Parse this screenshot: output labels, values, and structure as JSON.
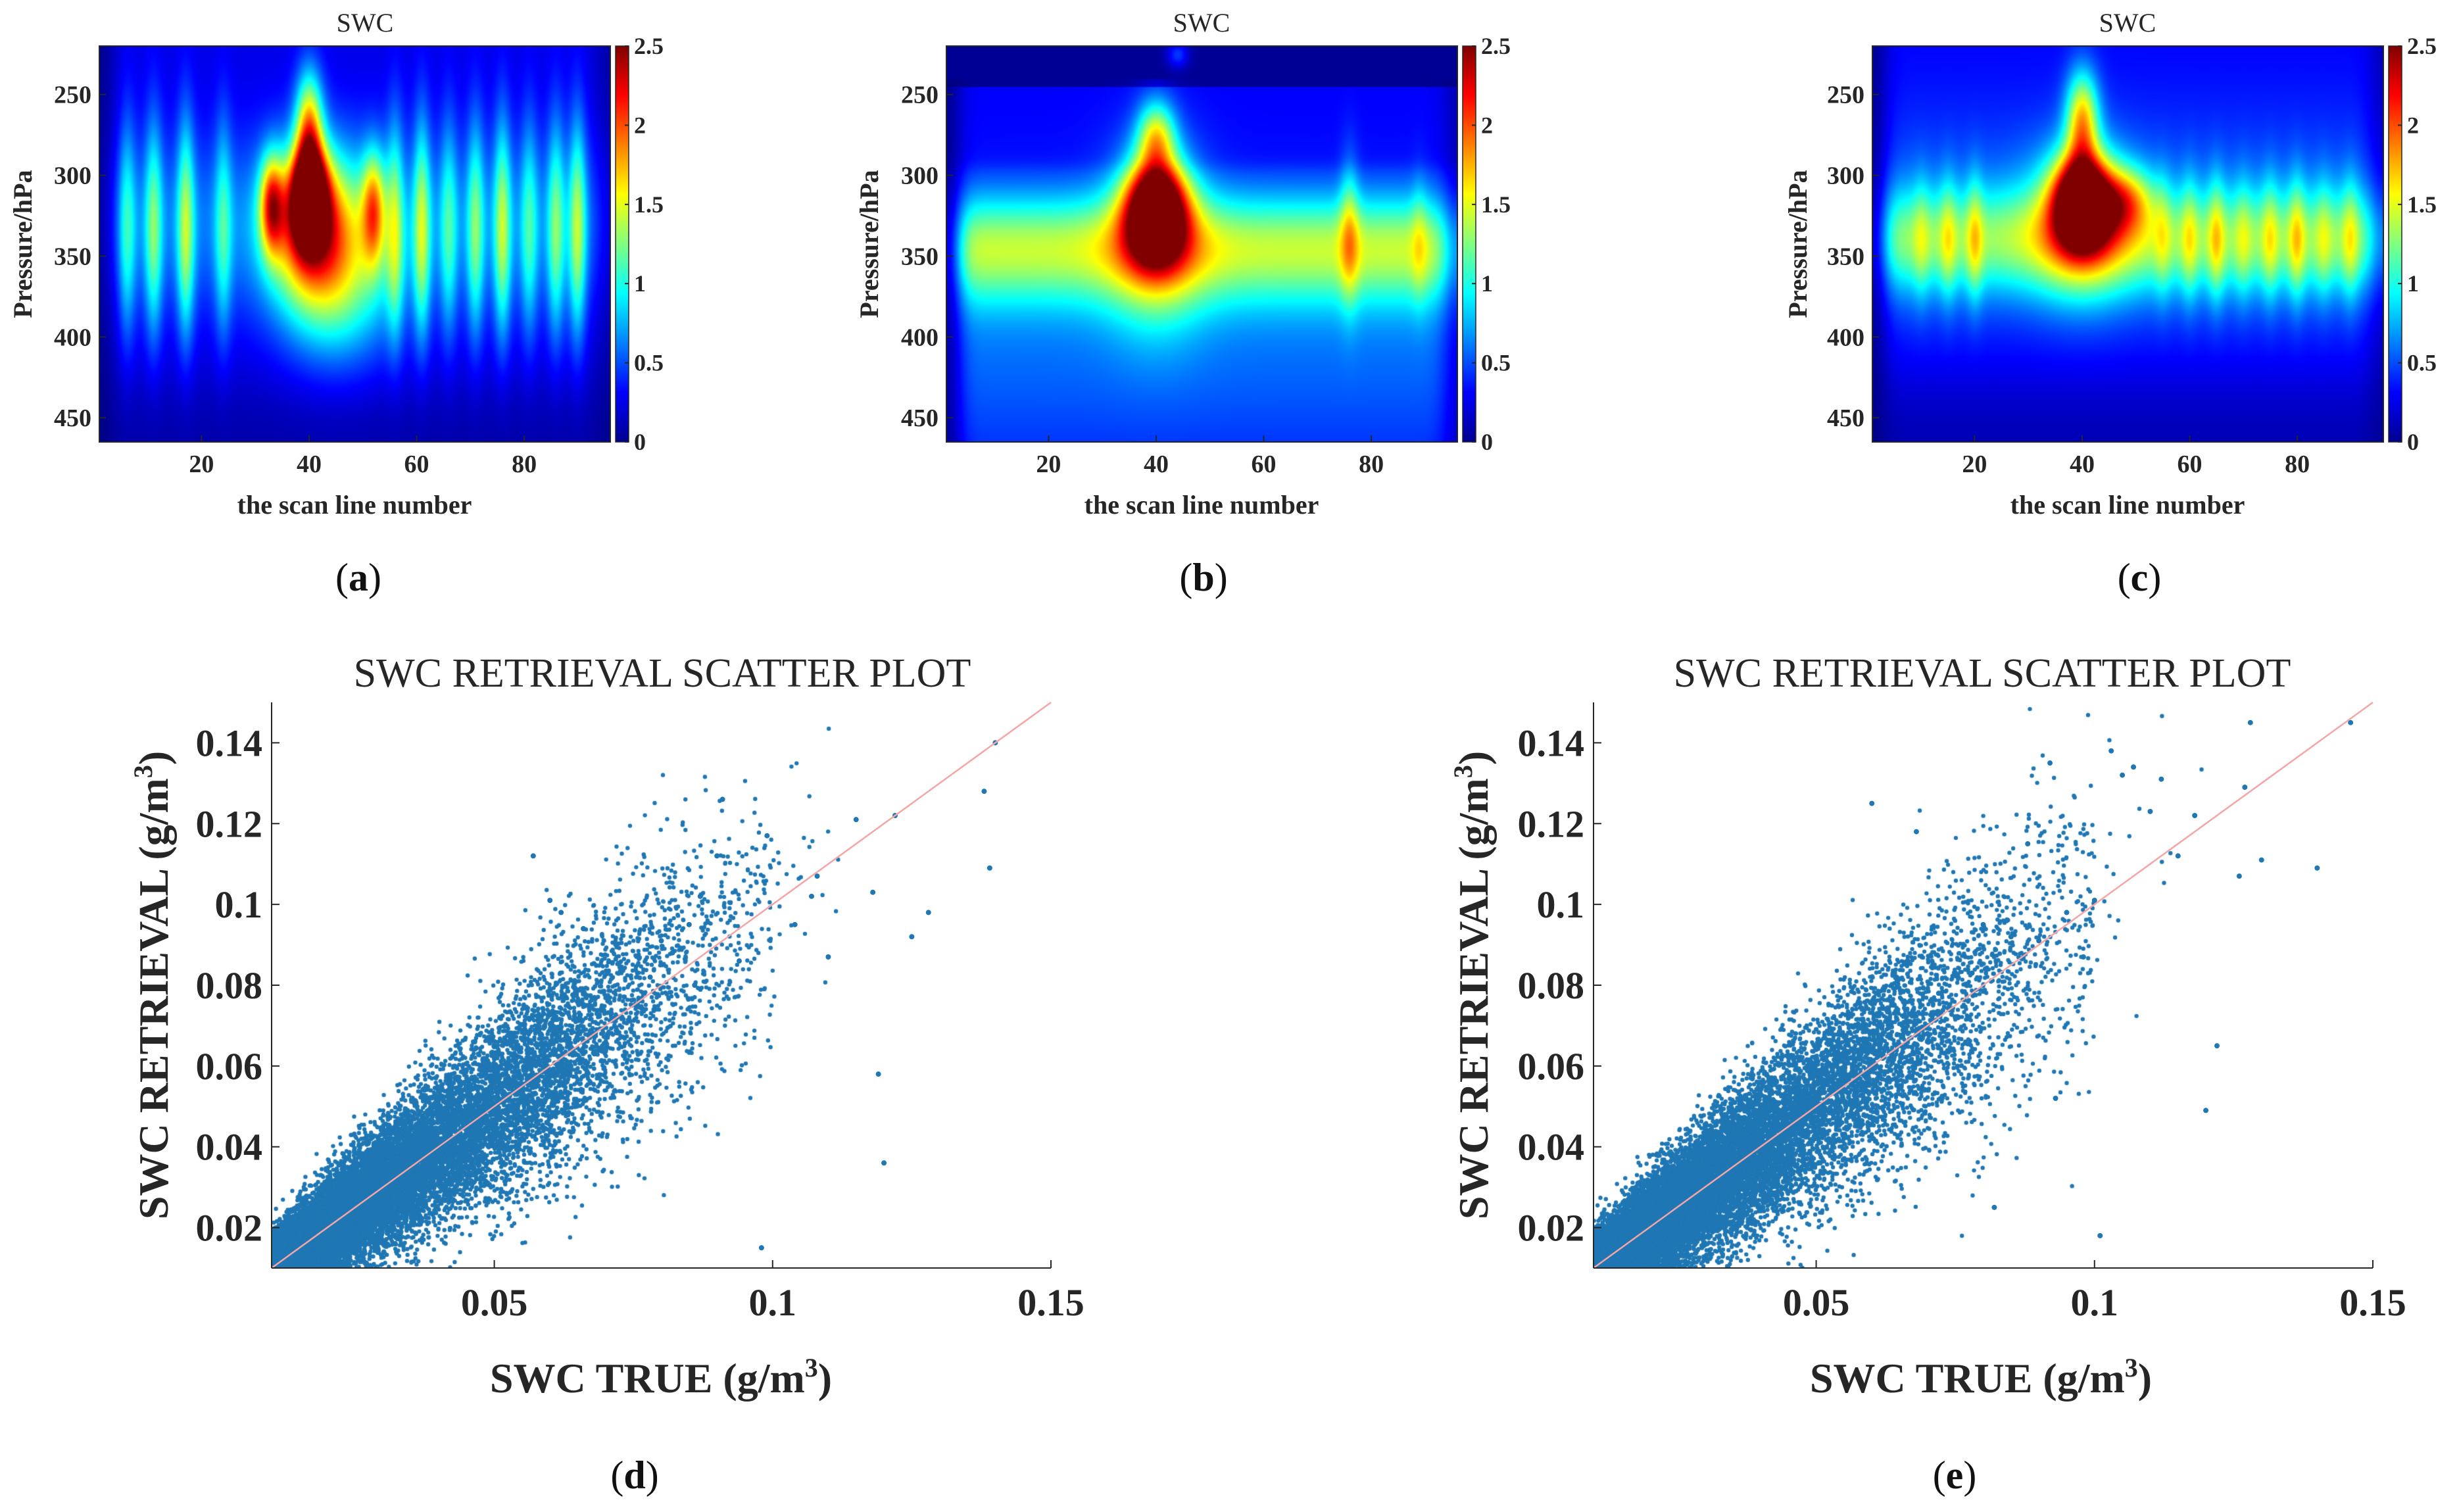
{
  "colors": {
    "scatter_point": "#1f77b4",
    "identity_line": "#f4a5a5",
    "colormap": "jet"
  },
  "chart_data": [
    {
      "type": "heatmap",
      "panel_label": "a",
      "title": "SWC",
      "xlabel": "the scan line number",
      "ylabel": "Pressure/hPa",
      "xlim": [
        1,
        96
      ],
      "ylim": [
        220,
        465
      ],
      "y_reversed": true,
      "x_ticks": [
        "20",
        "40",
        "60",
        "80"
      ],
      "y_ticks": [
        "250",
        "300",
        "350",
        "400",
        "450"
      ],
      "colorbar": {
        "range": [
          0,
          2.5
        ],
        "ticks": [
          "0",
          "0.5",
          "1",
          "1.5",
          "2",
          "2.5"
        ]
      },
      "field": {
        "peak": {
          "x": 40,
          "p": 315,
          "value": 2.5
        },
        "description_values": "max SWC about 2.5 near scan line 40 at 315 hPa; secondary maxima ~1.7 near scan lines 33 and 52; weaker columns ~1.2 across scan lines 55-92"
      }
    },
    {
      "type": "heatmap",
      "panel_label": "b",
      "title": "SWC",
      "xlabel": "the scan line number",
      "ylabel": "Pressure/hPa",
      "xlim": [
        1,
        96
      ],
      "ylim": [
        220,
        465
      ],
      "y_reversed": true,
      "x_ticks": [
        "20",
        "40",
        "60",
        "80"
      ],
      "y_ticks": [
        "250",
        "300",
        "350",
        "400",
        "450"
      ],
      "colorbar": {
        "range": [
          0,
          2.5
        ],
        "ticks": [
          "0",
          "0.5",
          "1",
          "1.5",
          "2",
          "2.5"
        ]
      },
      "field": {
        "peak": {
          "x": 40,
          "p": 320,
          "value": 2.5
        },
        "description_values": "max SWC about 2.5 near scan line 40 at 320 hPa; band ~1.2 between 305-385 hPa across all scan lines; secondary maximum ~1.8 near scan line 76"
      }
    },
    {
      "type": "heatmap",
      "panel_label": "c",
      "title": "SWC",
      "xlabel": "the scan line number",
      "ylabel": "Pressure/hPa",
      "xlim": [
        1,
        96
      ],
      "ylim": [
        220,
        465
      ],
      "y_reversed": true,
      "x_ticks": [
        "20",
        "40",
        "60",
        "80"
      ],
      "y_ticks": [
        "250",
        "300",
        "350",
        "400",
        "450"
      ],
      "colorbar": {
        "range": [
          0,
          2.5
        ],
        "ticks": [
          "0",
          "0.5",
          "1",
          "1.5",
          "2",
          "2.5"
        ]
      },
      "field": {
        "peak": {
          "x": 40,
          "p": 315,
          "value": 2.5
        },
        "description_values": "max SWC about 2.5 near scan line 40 at 315 hPa; band ~1.2 between 305-380 hPa across scan lines 10-92"
      }
    },
    {
      "type": "scatter",
      "panel_label": "d",
      "title": "SWC RETRIEVAL SCATTER PLOT",
      "xlabel": "SWC TRUE (g/m",
      "xlabel_sup": "3",
      "xlabel_close": ")",
      "ylabel": "SWC RETRIEVAL (g/m",
      "ylabel_sup": "3",
      "ylabel_close": ")",
      "xlim": [
        0.01,
        0.15
      ],
      "ylim": [
        0.01,
        0.15
      ],
      "x_ticks": [
        0.05,
        0.1,
        0.15
      ],
      "x_tick_labels": [
        "0.05",
        "0.1",
        "0.15"
      ],
      "y_ticks": [
        0.02,
        0.04,
        0.06,
        0.08,
        0.1,
        0.12,
        0.14
      ],
      "y_tick_labels": [
        "0.02",
        "0.04",
        "0.06",
        "0.08",
        "0.1",
        "0.12",
        "0.14"
      ],
      "reference_line": {
        "x": [
          0.01,
          0.15
        ],
        "y": [
          0.01,
          0.15
        ]
      },
      "points": {
        "x": [
          0.14,
          0.138,
          0.139,
          0.128,
          0.125,
          0.118,
          0.12,
          0.119,
          0.11,
          0.108,
          0.107,
          0.104,
          0.098,
          0.094,
          0.091,
          0.09,
          0.087,
          0.085,
          0.082,
          0.08,
          0.078,
          0.073,
          0.072,
          0.07,
          0.068,
          0.066,
          0.063,
          0.062,
          0.06,
          0.058,
          0.057,
          0.055,
          0.052,
          0.05,
          0.048,
          0.045,
          0.042,
          0.04,
          0.038,
          0.035,
          0.032,
          0.03,
          0.025,
          0.02,
          0.015,
          0.012,
          0.122,
          0.115,
          0.099,
          0.086
        ],
        "y": [
          0.14,
          0.128,
          0.109,
          0.098,
          0.092,
          0.103,
          0.036,
          0.058,
          0.087,
          0.107,
          0.102,
          0.095,
          0.015,
          0.086,
          0.126,
          0.112,
          0.102,
          0.095,
          0.088,
          0.091,
          0.082,
          0.084,
          0.072,
          0.064,
          0.063,
          0.094,
          0.052,
          0.098,
          0.101,
          0.072,
          0.112,
          0.053,
          0.049,
          0.055,
          0.043,
          0.041,
          0.037,
          0.042,
          0.031,
          0.036,
          0.028,
          0.031,
          0.027,
          0.022,
          0.018,
          0.016,
          0.122,
          0.121,
          0.117,
          0.08
        ]
      },
      "cloud": {
        "center_x": 0.03,
        "center_y": 0.03,
        "spread": "dense, heteroscedastic around the 1:1 line"
      }
    },
    {
      "type": "scatter",
      "panel_label": "e",
      "title": "SWC RETRIEVAL SCATTER PLOT",
      "xlabel": "SWC TRUE (g/m",
      "xlabel_sup": "3",
      "xlabel_close": ")",
      "ylabel": "SWC RETRIEVAL (g/m",
      "ylabel_sup": "3",
      "ylabel_close": ")",
      "xlim": [
        0.01,
        0.15
      ],
      "ylim": [
        0.01,
        0.15
      ],
      "x_ticks": [
        0.05,
        0.1,
        0.15
      ],
      "x_tick_labels": [
        "0.05",
        "0.1",
        "0.15"
      ],
      "y_ticks": [
        0.02,
        0.04,
        0.06,
        0.08,
        0.1,
        0.12,
        0.14
      ],
      "y_tick_labels": [
        "0.02",
        "0.04",
        "0.06",
        "0.08",
        "0.1",
        "0.12",
        "0.14"
      ],
      "reference_line": {
        "x": [
          0.01,
          0.15
        ],
        "y": [
          0.01,
          0.15
        ]
      },
      "points": {
        "x": [
          0.146,
          0.14,
          0.13,
          0.128,
          0.127,
          0.126,
          0.122,
          0.12,
          0.118,
          0.115,
          0.112,
          0.11,
          0.107,
          0.105,
          0.103,
          0.101,
          0.1,
          0.098,
          0.095,
          0.093,
          0.092,
          0.09,
          0.088,
          0.085,
          0.082,
          0.08,
          0.078,
          0.075,
          0.072,
          0.07,
          0.068,
          0.065,
          0.063,
          0.06,
          0.058,
          0.055,
          0.052,
          0.05,
          0.047,
          0.045,
          0.042,
          0.04,
          0.037,
          0.035,
          0.032,
          0.03,
          0.025,
          0.02,
          0.015,
          0.012
        ],
        "y": [
          0.145,
          0.109,
          0.111,
          0.145,
          0.129,
          0.107,
          0.065,
          0.049,
          0.122,
          0.112,
          0.131,
          0.123,
          0.134,
          0.132,
          0.138,
          0.018,
          0.101,
          0.087,
          0.098,
          0.052,
          0.135,
          0.091,
          0.115,
          0.092,
          0.025,
          0.095,
          0.083,
          0.072,
          0.078,
          0.068,
          0.118,
          0.061,
          0.057,
          0.125,
          0.063,
          0.058,
          0.051,
          0.047,
          0.044,
          0.042,
          0.039,
          0.036,
          0.034,
          0.03,
          0.028,
          0.026,
          0.024,
          0.02,
          0.017,
          0.014
        ]
      },
      "cloud": {
        "center_x": 0.03,
        "center_y": 0.03,
        "spread": "dense, heteroscedastic around the 1:1 line"
      }
    }
  ]
}
